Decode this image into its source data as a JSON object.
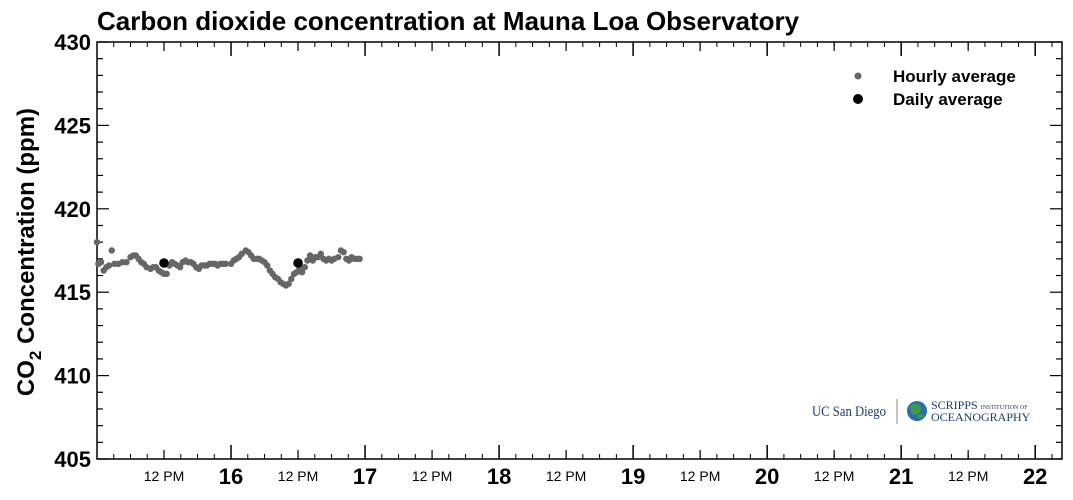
{
  "chart_data": {
    "type": "scatter",
    "title": "Carbon dioxide concentration at Mauna Loa Observatory",
    "ylabel": {
      "main": "CO",
      "subscript": "2",
      "rest": " Concentration (ppm)"
    },
    "ylim": [
      405,
      430
    ],
    "yticks": [
      405,
      410,
      415,
      420,
      425,
      430
    ],
    "xlim": [
      15,
      22.2
    ],
    "x_major_ticks": [
      {
        "x": 16,
        "label": "16"
      },
      {
        "x": 17,
        "label": "17"
      },
      {
        "x": 18,
        "label": "18"
      },
      {
        "x": 19,
        "label": "19"
      },
      {
        "x": 20,
        "label": "20"
      },
      {
        "x": 21,
        "label": "21"
      },
      {
        "x": 22,
        "label": "22"
      }
    ],
    "x_minor_ticks": [
      {
        "x": 15.5,
        "label": "12 PM"
      },
      {
        "x": 16.5,
        "label": "12 PM"
      },
      {
        "x": 17.5,
        "label": "12 PM"
      },
      {
        "x": 18.5,
        "label": "12 PM"
      },
      {
        "x": 19.5,
        "label": "12 PM"
      },
      {
        "x": 20.5,
        "label": "12 PM"
      },
      {
        "x": 21.5,
        "label": "12 PM"
      }
    ],
    "grid": false,
    "legend_position": "top-right",
    "series": [
      {
        "name": "Hourly average",
        "color": "#666666",
        "marker": "small-dot",
        "points": [
          [
            15.0,
            418.0
          ],
          [
            15.01,
            416.7
          ],
          [
            15.03,
            416.8
          ],
          [
            15.05,
            416.3
          ],
          [
            15.07,
            416.5
          ],
          [
            15.09,
            416.6
          ],
          [
            15.11,
            417.5
          ],
          [
            15.13,
            416.7
          ],
          [
            15.16,
            416.7
          ],
          [
            15.19,
            416.8
          ],
          [
            15.22,
            416.8
          ],
          [
            15.25,
            417.1
          ],
          [
            15.27,
            417.2
          ],
          [
            15.29,
            417.2
          ],
          [
            15.31,
            417.0
          ],
          [
            15.33,
            416.8
          ],
          [
            15.35,
            416.7
          ],
          [
            15.37,
            416.5
          ],
          [
            15.4,
            416.4
          ],
          [
            15.42,
            416.5
          ],
          [
            15.44,
            416.5
          ],
          [
            15.46,
            416.3
          ],
          [
            15.48,
            416.2
          ],
          [
            15.5,
            416.1
          ],
          [
            15.52,
            416.1
          ],
          [
            15.54,
            416.6
          ],
          [
            15.56,
            416.8
          ],
          [
            15.58,
            416.7
          ],
          [
            15.6,
            416.6
          ],
          [
            15.62,
            416.5
          ],
          [
            15.64,
            416.8
          ],
          [
            15.66,
            416.9
          ],
          [
            15.68,
            416.8
          ],
          [
            15.7,
            416.8
          ],
          [
            15.72,
            416.7
          ],
          [
            15.74,
            416.5
          ],
          [
            15.76,
            416.4
          ],
          [
            15.78,
            416.6
          ],
          [
            15.8,
            416.6
          ],
          [
            15.82,
            416.6
          ],
          [
            15.84,
            416.7
          ],
          [
            15.86,
            416.7
          ],
          [
            15.88,
            416.7
          ],
          [
            15.9,
            416.6
          ],
          [
            15.92,
            416.7
          ],
          [
            15.94,
            416.7
          ],
          [
            15.96,
            416.7
          ],
          [
            16.0,
            416.7
          ],
          [
            16.02,
            416.9
          ],
          [
            16.04,
            417.0
          ],
          [
            16.06,
            417.1
          ],
          [
            16.08,
            417.3
          ],
          [
            16.11,
            417.5
          ],
          [
            16.13,
            417.4
          ],
          [
            16.15,
            417.2
          ],
          [
            16.17,
            417.0
          ],
          [
            16.19,
            417.0
          ],
          [
            16.21,
            417.0
          ],
          [
            16.23,
            416.9
          ],
          [
            16.25,
            416.8
          ],
          [
            16.27,
            416.6
          ],
          [
            16.29,
            416.3
          ],
          [
            16.31,
            416.1
          ],
          [
            16.33,
            415.9
          ],
          [
            16.35,
            415.8
          ],
          [
            16.37,
            415.6
          ],
          [
            16.39,
            415.5
          ],
          [
            16.41,
            415.4
          ],
          [
            16.43,
            415.5
          ],
          [
            16.45,
            415.8
          ],
          [
            16.47,
            416.1
          ],
          [
            16.49,
            416.2
          ],
          [
            16.51,
            416.4
          ],
          [
            16.53,
            416.2
          ],
          [
            16.55,
            416.5
          ],
          [
            16.57,
            416.9
          ],
          [
            16.59,
            417.2
          ],
          [
            16.61,
            416.9
          ],
          [
            16.63,
            417.1
          ],
          [
            16.65,
            417.1
          ],
          [
            16.67,
            417.3
          ],
          [
            16.69,
            417.0
          ],
          [
            16.71,
            416.9
          ],
          [
            16.73,
            417.0
          ],
          [
            16.75,
            416.9
          ],
          [
            16.77,
            417.0
          ],
          [
            16.8,
            417.1
          ],
          [
            16.82,
            417.5
          ],
          [
            16.84,
            417.4
          ],
          [
            16.86,
            417.0
          ],
          [
            16.88,
            416.9
          ],
          [
            16.9,
            417.1
          ],
          [
            16.92,
            417.0
          ],
          [
            16.94,
            417.0
          ],
          [
            16.96,
            417.0
          ]
        ]
      },
      {
        "name": "Daily average",
        "color": "#000000",
        "marker": "large-dot",
        "points": [
          [
            15.5,
            416.75
          ],
          [
            16.5,
            416.75
          ]
        ]
      }
    ]
  },
  "logos": {
    "ucsd": "UC San Diego",
    "scripps_line1": "SCRIPPS",
    "scripps_line1_small": "INSTITUTION OF",
    "scripps_line2": "OCEANOGRAPHY"
  }
}
